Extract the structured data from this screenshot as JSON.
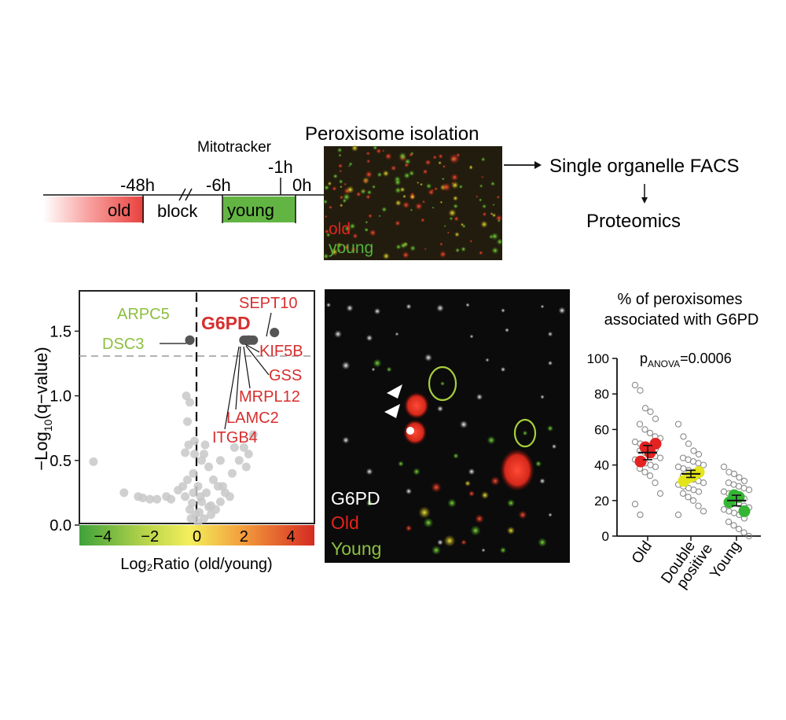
{
  "timeline": {
    "mitotracker_label": "Mitotracker",
    "times": [
      "-48h",
      "-6h",
      "-1h",
      "0h"
    ],
    "old_box_label": "old",
    "block_label": "block",
    "young_box_label": "young"
  },
  "isolation": {
    "title": "Peroxisome isolation",
    "legend_old": "old",
    "legend_young": "young"
  },
  "workflow": {
    "step1": "Single organelle FACS",
    "step2": "Proteomics"
  },
  "volcano": {
    "ylabel_main": "−Log",
    "ylabel_sub": "10",
    "ylabel_rest": "(q−value)",
    "xlabel": "Log₂Ratio (old/young)",
    "colors": {
      "old": "#d72e2e",
      "young": "#8cbf3f",
      "highlight": "#555555",
      "points": "#c8c8c8"
    },
    "labels": {
      "arpc5": "ARPC5",
      "dsc3": "DSC3",
      "g6pd": "G6PD",
      "sept10": "SEPT10",
      "kif5b": "KIF5B",
      "gss": "GSS",
      "mrpl12": "MRPL12",
      "lamc2": "LAMC2",
      "itgb4": "ITGB4"
    }
  },
  "microscopy": {
    "legend_g6pd": "G6PD",
    "legend_old": "Old",
    "legend_young": "Young"
  },
  "dotplot": {
    "title_line1": "% of peroxisomes",
    "title_line2": "associated with G6PD",
    "p_main": "p",
    "p_sub": "ANOVA",
    "p_value": "=0.0006"
  },
  "chart_data": [
    {
      "type": "scatter",
      "title": "",
      "xlabel": "Log₂Ratio (old/young)",
      "ylabel": "−Log10(q−value)",
      "xlim": [
        -5,
        5
      ],
      "ylim": [
        0,
        1.8
      ],
      "xticks": [
        -4,
        -2,
        0,
        2,
        4
      ],
      "yticks": [
        0.0,
        0.5,
        1.0,
        1.5
      ],
      "threshold_y": 1.33,
      "highlighted": [
        {
          "name": "ARPC5",
          "x": -0.3,
          "y": 1.43,
          "group": "young"
        },
        {
          "name": "DSC3",
          "x": -0.3,
          "y": 1.43,
          "group": "young"
        },
        {
          "name": "G6PD",
          "x": 2.2,
          "y": 1.43,
          "group": "old"
        },
        {
          "name": "SEPT10",
          "x": 3.3,
          "y": 1.49,
          "group": "old"
        },
        {
          "name": "KIF5B",
          "x": 2.3,
          "y": 1.43,
          "group": "old"
        },
        {
          "name": "GSS",
          "x": 2.4,
          "y": 1.43,
          "group": "old"
        },
        {
          "name": "MRPL12",
          "x": 2.1,
          "y": 1.43,
          "group": "old"
        },
        {
          "name": "LAMC2",
          "x": 2.0,
          "y": 1.43,
          "group": "old"
        },
        {
          "name": "ITGB4",
          "x": 2.2,
          "y": 1.43,
          "group": "old"
        }
      ],
      "points": [
        [
          -4.4,
          0.49
        ],
        [
          -3.1,
          0.25
        ],
        [
          -2.5,
          0.22
        ],
        [
          -2.3,
          0.21
        ],
        [
          -2.0,
          0.2
        ],
        [
          -1.7,
          0.2
        ],
        [
          -1.3,
          0.22
        ],
        [
          -1.1,
          0.2
        ],
        [
          -0.8,
          0.27
        ],
        [
          -0.6,
          0.3
        ],
        [
          -0.5,
          0.22
        ],
        [
          -0.4,
          0.35
        ],
        [
          -0.3,
          0.12
        ],
        [
          -0.25,
          0.05
        ],
        [
          -0.2,
          0.17
        ],
        [
          -0.15,
          0.4
        ],
        [
          -0.1,
          0.55
        ],
        [
          -0.1,
          0.65
        ],
        [
          -0.35,
          0.62
        ],
        [
          -0.5,
          0.56
        ],
        [
          -0.3,
          0.95
        ],
        [
          -0.45,
          1.0
        ],
        [
          -0.4,
          0.8
        ],
        [
          0.05,
          0.02
        ],
        [
          0.1,
          0.1
        ],
        [
          0.2,
          0.18
        ],
        [
          0.3,
          0.05
        ],
        [
          0.4,
          0.25
        ],
        [
          0.5,
          0.14
        ],
        [
          0.6,
          0.08
        ],
        [
          0.8,
          0.12
        ],
        [
          1.0,
          0.18
        ],
        [
          1.2,
          0.25
        ],
        [
          1.5,
          0.4
        ],
        [
          1.8,
          0.5
        ],
        [
          2.0,
          0.6
        ],
        [
          2.2,
          0.55
        ],
        [
          2.4,
          0.7
        ],
        [
          1.1,
          0.3
        ],
        [
          1.4,
          0.22
        ],
        [
          0.3,
          0.55
        ],
        [
          0.2,
          0.5
        ],
        [
          0.5,
          0.45
        ],
        [
          0.7,
          0.35
        ],
        [
          0.9,
          0.3
        ],
        [
          1.0,
          0.5
        ],
        [
          1.6,
          0.6
        ],
        [
          2.1,
          0.45
        ],
        [
          0.05,
          0.3
        ],
        [
          0.15,
          0.22
        ],
        [
          -0.05,
          0.08
        ],
        [
          0.35,
          0.62
        ],
        [
          0.6,
          0.15
        ],
        [
          -0.15,
          0.25
        ]
      ]
    },
    {
      "type": "scatter",
      "title": "% of peroxisomes associated with G6PD",
      "xlabel": "",
      "ylabel": "",
      "ylim": [
        0,
        100
      ],
      "yticks": [
        0,
        20,
        40,
        60,
        80,
        100
      ],
      "categories": [
        "Old",
        "Double positive",
        "Young"
      ],
      "series": [
        {
          "name": "Old",
          "color": "#e32222",
          "mean": 47,
          "sem": 4,
          "replicates": [
            42,
            47,
            52,
            50
          ],
          "values": [
            85,
            82,
            72,
            70,
            66,
            63,
            60,
            58,
            56,
            55,
            53,
            52,
            51,
            50,
            49,
            48,
            47,
            46,
            45,
            44,
            43,
            42,
            41,
            40,
            39,
            38,
            36,
            34,
            30,
            24,
            18,
            12
          ]
        },
        {
          "name": "Double positive",
          "color": "#e3e41a",
          "mean": 35,
          "sem": 2,
          "replicates": [
            31,
            34,
            36,
            33
          ],
          "values": [
            63,
            56,
            52,
            48,
            46,
            44,
            43,
            42,
            41,
            40,
            39,
            38,
            37,
            36,
            35,
            34,
            33,
            32,
            31,
            30,
            29,
            28,
            27,
            26,
            25,
            24,
            22,
            20,
            17,
            14,
            12
          ]
        },
        {
          "name": "Young",
          "color": "#35b534",
          "mean": 20,
          "sem": 3,
          "replicates": [
            19,
            22,
            14,
            23
          ],
          "values": [
            39,
            36,
            35,
            33,
            31,
            30,
            29,
            28,
            27,
            26,
            25,
            24,
            23,
            22,
            21,
            20,
            19,
            18,
            17,
            16,
            15,
            14,
            13,
            12,
            10,
            8,
            6,
            4,
            2,
            0
          ]
        }
      ]
    }
  ]
}
